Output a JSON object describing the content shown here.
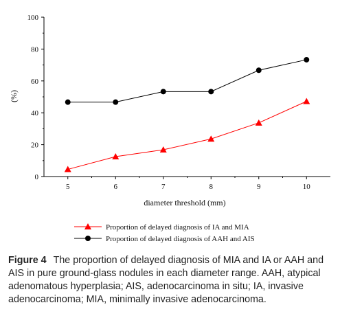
{
  "chart_data": {
    "type": "line",
    "xlabel": "diameter threshold (mm)",
    "ylabel": "(%)",
    "x": [
      5,
      6,
      7,
      8,
      9,
      10
    ],
    "xlim": [
      4.5,
      10.5
    ],
    "ylim": [
      0,
      100
    ],
    "yticks": [
      0,
      20,
      40,
      60,
      80,
      100
    ],
    "series": [
      {
        "name": "Proportion of delayed diagnosis of AAH and AIS",
        "values": [
          46.7,
          46.7,
          53.3,
          53.3,
          66.7,
          73.3
        ],
        "color": "#000000",
        "marker": "circle"
      },
      {
        "name": "Proportion of delayed diagnosis of IA and MIA",
        "values": [
          4.5,
          12.5,
          16.8,
          23.6,
          33.7,
          47.2
        ],
        "color": "#ff0000",
        "marker": "triangle"
      }
    ],
    "legend": "bottom",
    "grid": false
  },
  "caption": {
    "label": "Figure 4",
    "text": "The proportion of delayed diagnosis of MIA and IA or AAH and AIS in pure ground-glass nodules in each diameter range. AAH, atypical adenomatous hyperplasia; AIS, adenocarcinoma in situ; IA, invasive adenocarcinoma; MIA, minimally invasive adenocarcinoma."
  }
}
